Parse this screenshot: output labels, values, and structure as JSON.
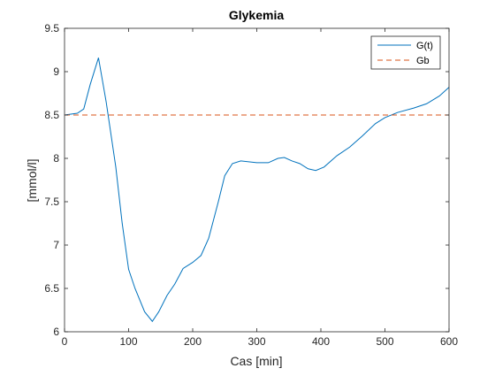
{
  "chart_data": {
    "type": "line",
    "title": "Glykemia",
    "xlabel": "Cas [min]",
    "ylabel": "[mmol/l]",
    "xlim": [
      0,
      600
    ],
    "ylim": [
      6,
      9.5
    ],
    "x_ticks": [
      0,
      100,
      200,
      300,
      400,
      500,
      600
    ],
    "y_ticks": [
      6,
      6.5,
      7,
      7.5,
      8,
      8.5,
      9,
      9.5
    ],
    "x_tick_labels": [
      "0",
      "100",
      "200",
      "300",
      "400",
      "500",
      "600"
    ],
    "y_tick_labels": [
      "6",
      "6.5",
      "7",
      "7.5",
      "8",
      "8.5",
      "9",
      "9.5"
    ],
    "grid": false,
    "legend_position": "top-right",
    "series": [
      {
        "name": "G(t)",
        "color": "#0072BD",
        "style": "solid",
        "x": [
          0,
          20,
          30,
          40,
          53,
          65,
          80,
          90,
          100,
          110,
          125,
          137,
          147,
          160,
          172,
          185,
          200,
          213,
          225,
          240,
          250,
          262,
          275,
          300,
          318,
          333,
          343,
          355,
          367,
          380,
          392,
          405,
          425,
          445,
          465,
          485,
          500,
          520,
          545,
          565,
          585,
          600
        ],
        "y": [
          8.5,
          8.52,
          8.57,
          8.85,
          9.16,
          8.65,
          7.9,
          7.25,
          6.72,
          6.5,
          6.23,
          6.12,
          6.23,
          6.42,
          6.55,
          6.73,
          6.8,
          6.88,
          7.08,
          7.5,
          7.8,
          7.94,
          7.97,
          7.95,
          7.95,
          8.0,
          8.01,
          7.97,
          7.94,
          7.88,
          7.86,
          7.9,
          8.03,
          8.13,
          8.26,
          8.4,
          8.47,
          8.53,
          8.58,
          8.63,
          8.72,
          8.82
        ]
      },
      {
        "name": "Gb",
        "color": "#D95319",
        "style": "dashed",
        "x": [
          0,
          600
        ],
        "y": [
          8.5,
          8.5
        ]
      }
    ]
  }
}
